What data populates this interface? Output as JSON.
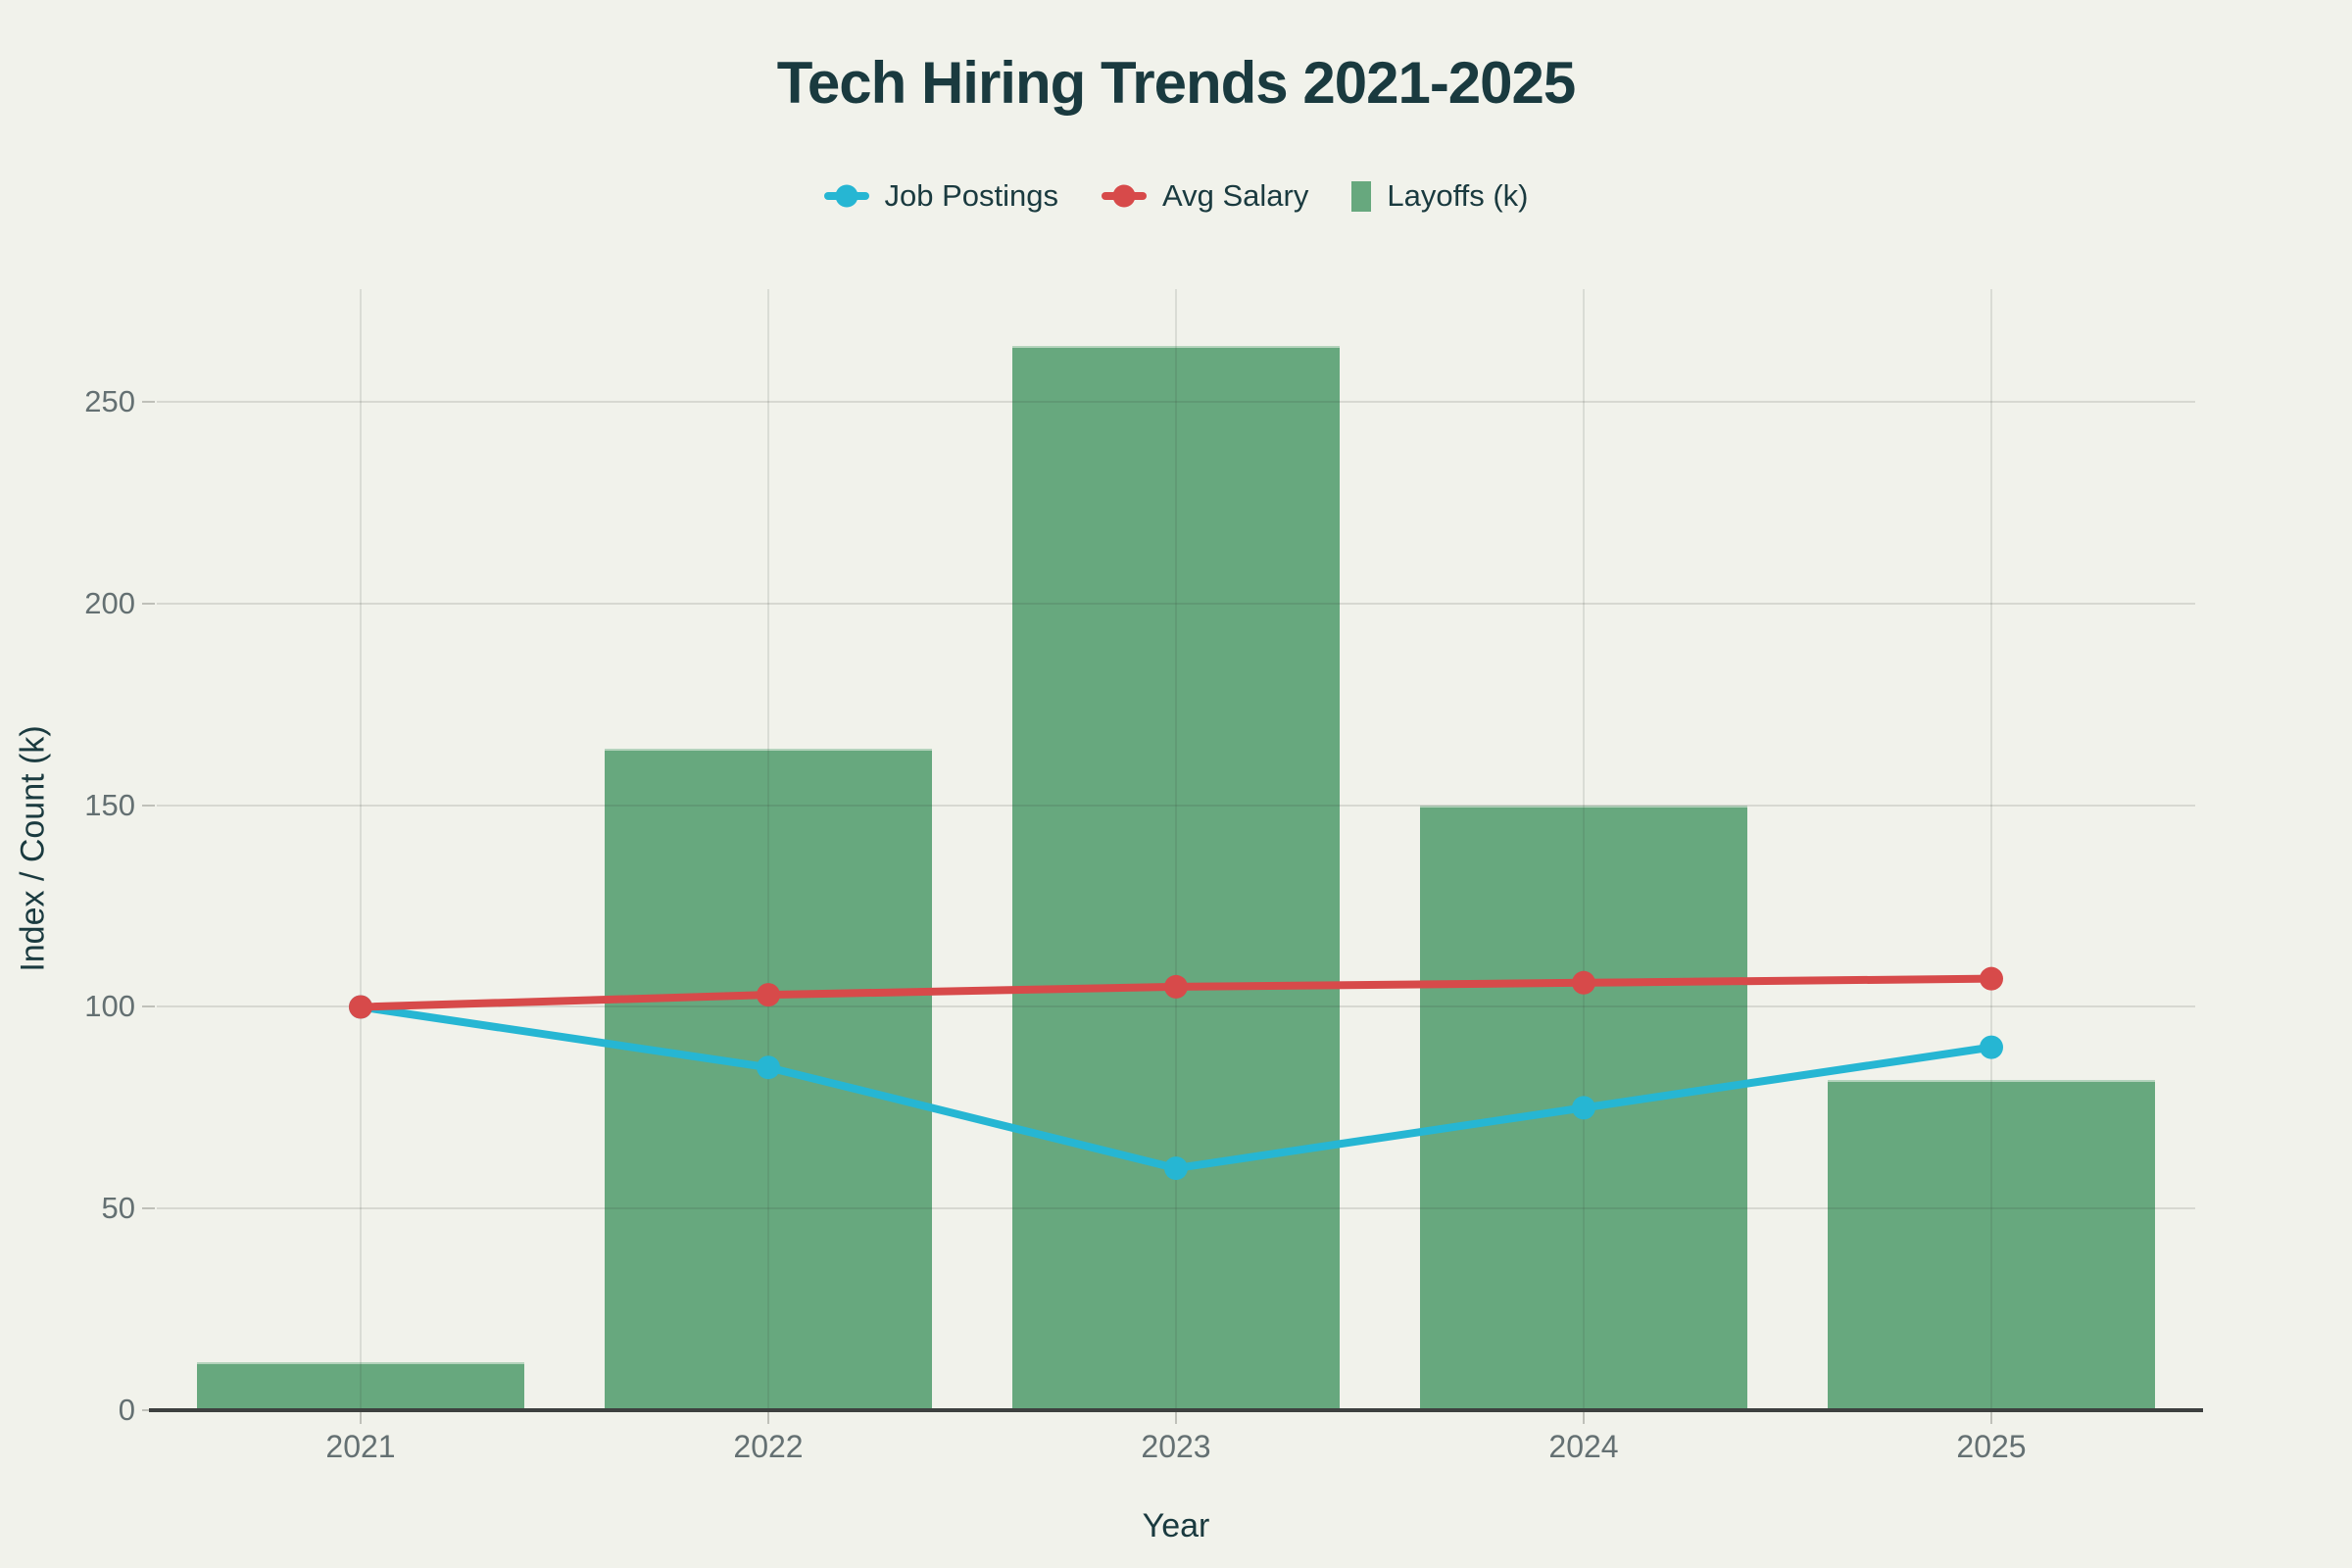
{
  "colors": {
    "background": "#f1f2eb",
    "title_text": "#1a3a3f",
    "tick_text": "#647072",
    "grid": "#d8dad1",
    "axis_line": "#3d403f",
    "job_postings": "#26b6d3",
    "avg_salary": "#d74a4a",
    "layoffs": "#67a87e"
  },
  "chart_data": {
    "type": "combo",
    "title": "Tech Hiring Trends 2021-2025",
    "xlabel": "Year",
    "ylabel": "Index / Count (k)",
    "categories": [
      "2021",
      "2022",
      "2023",
      "2024",
      "2025"
    ],
    "series": [
      {
        "name": "Job Postings",
        "type": "line",
        "color": "#26b6d3",
        "values": [
          100,
          85,
          60,
          75,
          90
        ]
      },
      {
        "name": "Avg Salary",
        "type": "line",
        "color": "#d74a4a",
        "values": [
          100,
          103,
          105,
          106,
          107
        ]
      },
      {
        "name": "Layoffs (k)",
        "type": "bar",
        "color": "#67a87e",
        "values": [
          12,
          164,
          264,
          150,
          82
        ]
      }
    ],
    "yticks": [
      0,
      50,
      100,
      150,
      200,
      250
    ],
    "ylim": [
      0,
      278
    ],
    "grid": true,
    "legend_position": "top-center"
  }
}
